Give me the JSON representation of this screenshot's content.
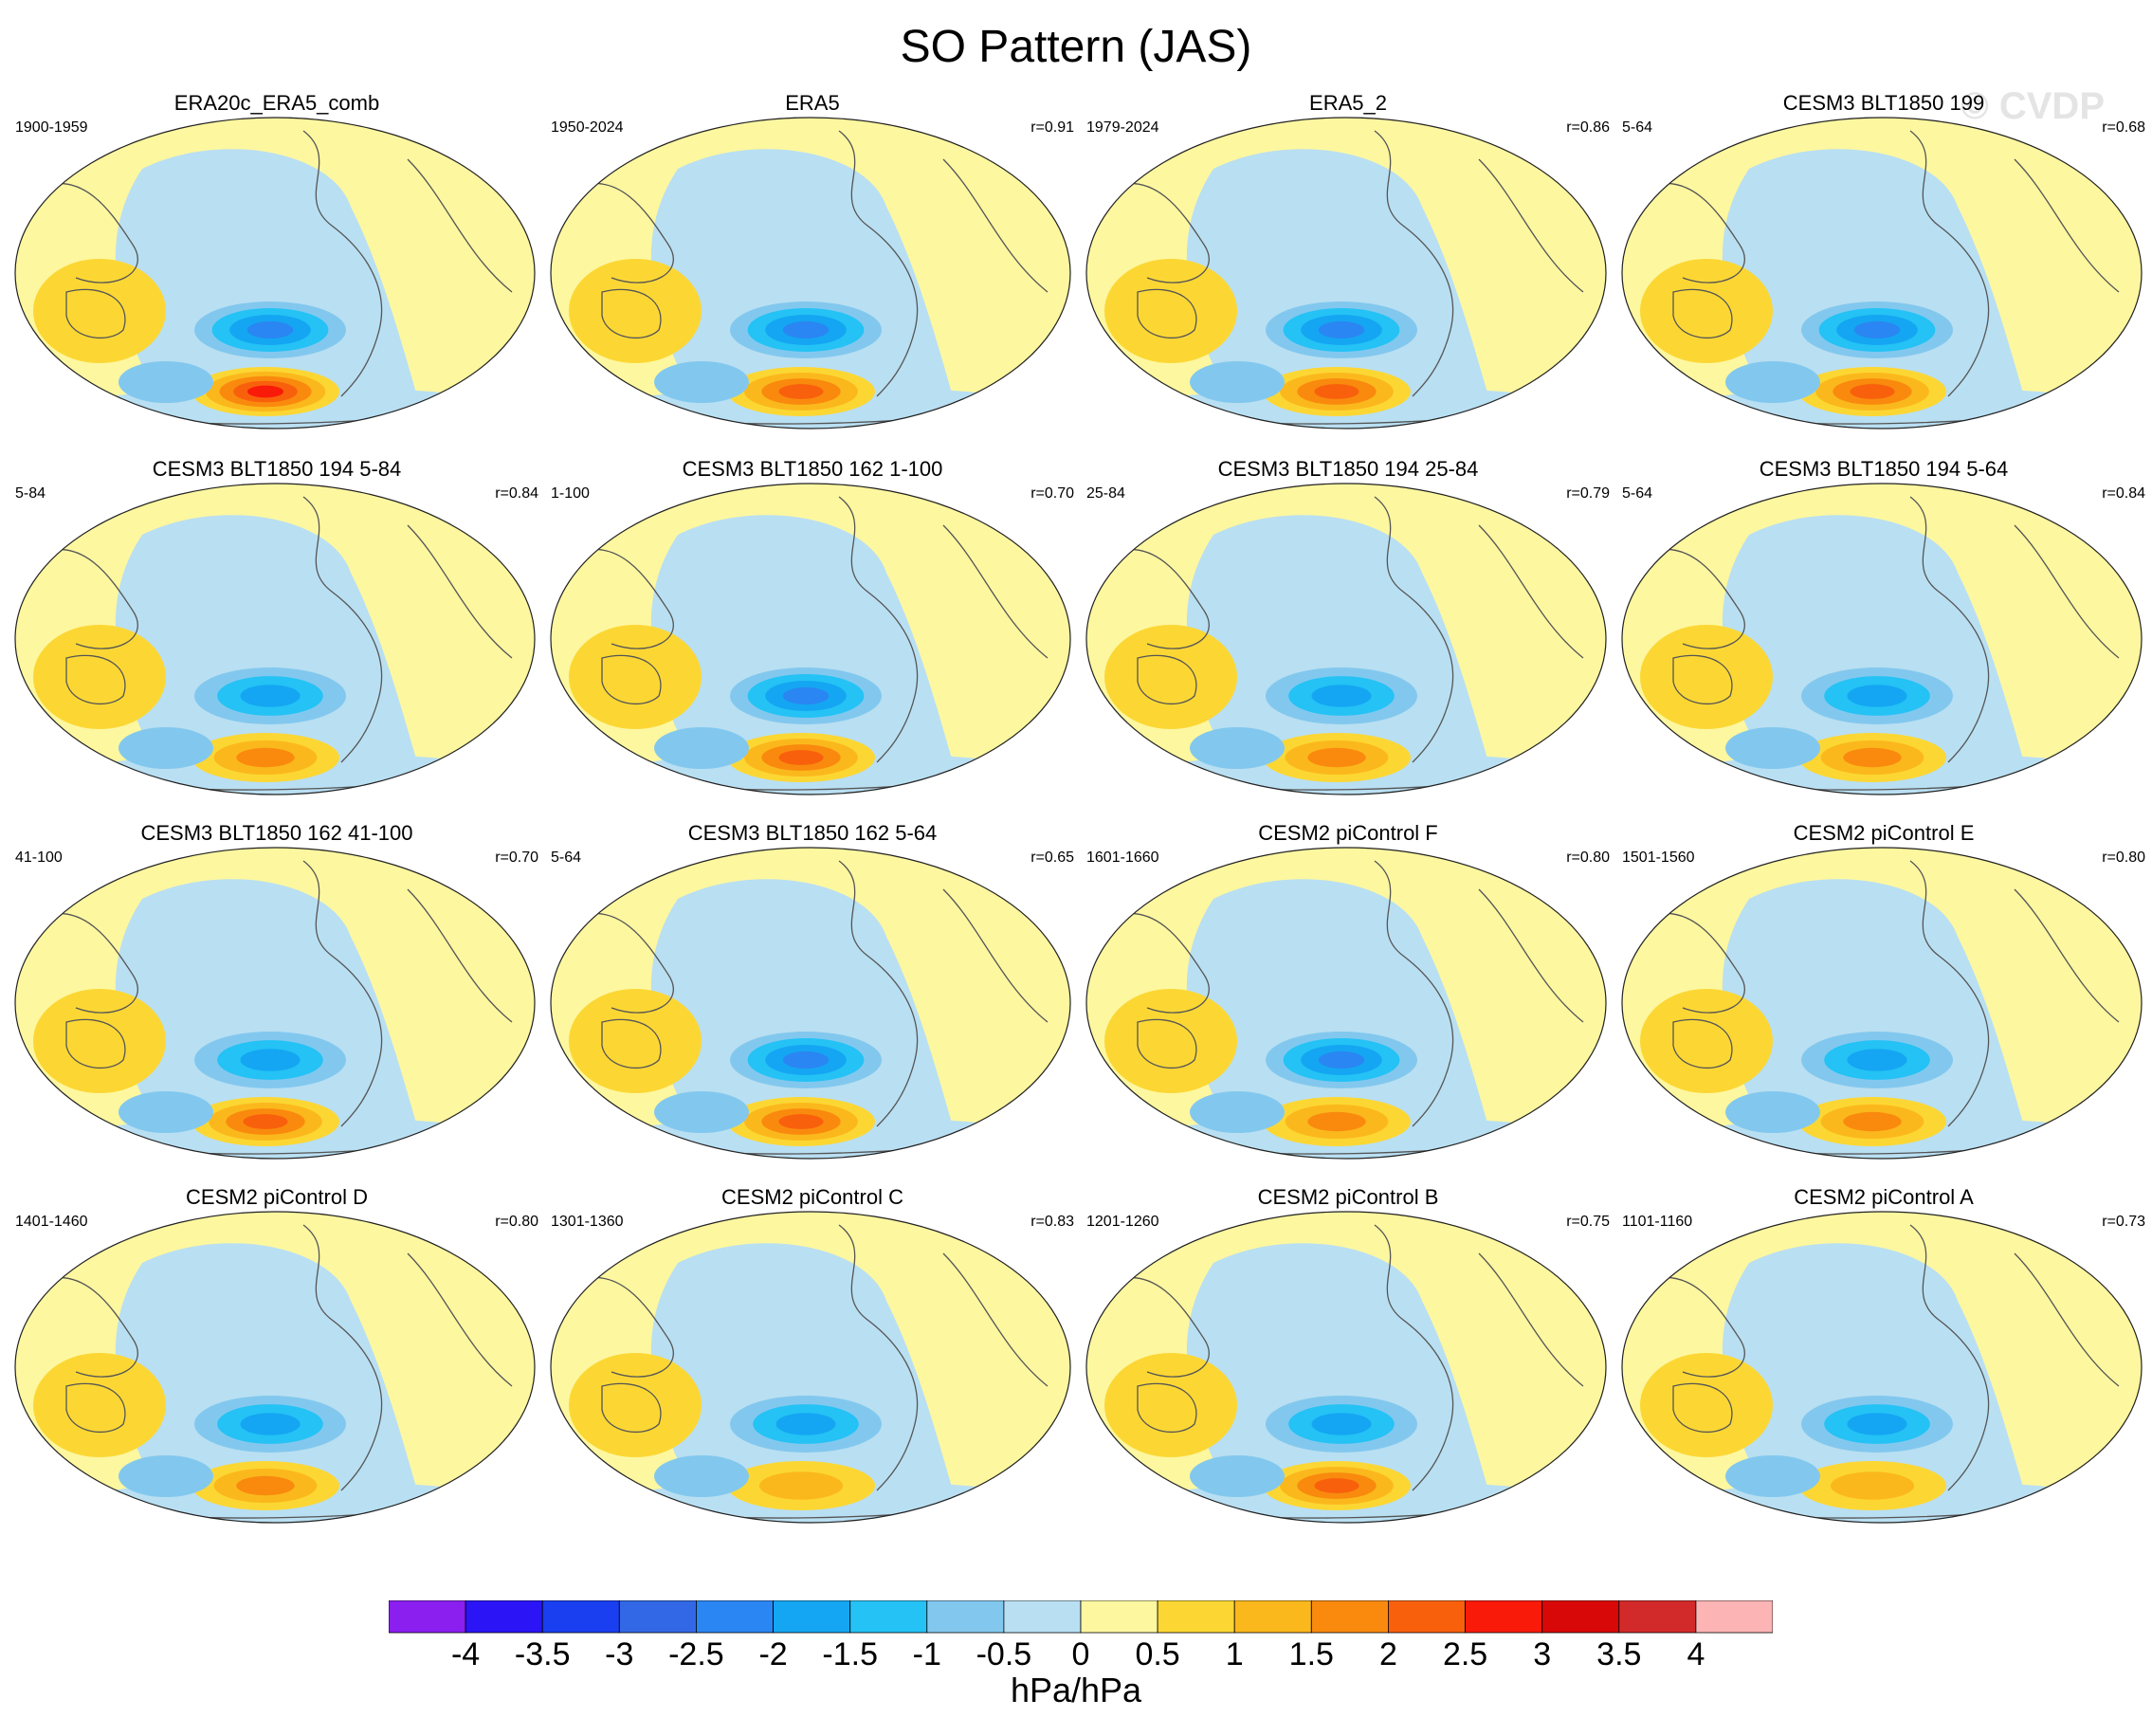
{
  "chart_data": {
    "type": "heatmap",
    "title": "SO Pattern (JAS)",
    "watermark": "© CVDP",
    "colorbar": {
      "units": "hPa/hPa",
      "levels": [
        "-4",
        "-3.5",
        "-3",
        "-2.5",
        "-2",
        "-1.5",
        "-1",
        "-0.5",
        "0",
        "0.5",
        "1",
        "1.5",
        "2",
        "2.5",
        "3",
        "3.5",
        "4"
      ],
      "colors": [
        "#8a1ff0",
        "#2b14f5",
        "#1a3ff0",
        "#3268e6",
        "#2a86f2",
        "#14a6f2",
        "#24c2f5",
        "#82c8ee",
        "#b9dff2",
        "#fdf7a0",
        "#fcd734",
        "#fbb81c",
        "#f98a0e",
        "#f9600c",
        "#f91a0a",
        "#d90808",
        "#d22a2a",
        "#fcb4b4"
      ]
    },
    "panels": [
      {
        "name": "ERA20c_ERA5_comb",
        "years": "1900-1959",
        "r": "",
        "neg": -2.0,
        "pos": 2.8
      },
      {
        "name": "ERA5",
        "years": "1950-2024",
        "r": "r=0.91",
        "neg": -2.0,
        "pos": 2.0
      },
      {
        "name": "ERA5_2",
        "years": "1979-2024",
        "r": "r=0.86",
        "neg": -2.0,
        "pos": 2.3
      },
      {
        "name": "CESM3 BLT1850 199",
        "years": "5-64",
        "r": "r=0.68",
        "neg": -2.0,
        "pos": 2.0
      },
      {
        "name": "CESM3 BLT1850 194 5-84",
        "years": "5-84",
        "r": "r=0.84",
        "neg": -1.8,
        "pos": 1.6
      },
      {
        "name": "CESM3 BLT1850 162 1-100",
        "years": "1-100",
        "r": "r=0.70",
        "neg": -2.2,
        "pos": 2.0
      },
      {
        "name": "CESM3 BLT1850 194 25-84",
        "years": "25-84",
        "r": "r=0.79",
        "neg": -1.8,
        "pos": 1.5
      },
      {
        "name": "CESM3 BLT1850 194 5-64",
        "years": "5-64",
        "r": "r=0.84",
        "neg": -1.7,
        "pos": 1.5
      },
      {
        "name": "CESM3 BLT1850 162 41-100",
        "years": "41-100",
        "r": "r=0.70",
        "neg": -1.9,
        "pos": 2.0
      },
      {
        "name": "CESM3 BLT1850 162 5-64",
        "years": "5-64",
        "r": "r=0.65",
        "neg": -2.1,
        "pos": 2.0
      },
      {
        "name": "CESM2 piControl F",
        "years": "1601-1660",
        "r": "r=0.80",
        "neg": -2.0,
        "pos": 1.7
      },
      {
        "name": "CESM2 piControl E",
        "years": "1501-1560",
        "r": "r=0.80",
        "neg": -1.7,
        "pos": 1.5
      },
      {
        "name": "CESM2 piControl D",
        "years": "1401-1460",
        "r": "r=0.80",
        "neg": -1.6,
        "pos": 1.5
      },
      {
        "name": "CESM2 piControl C",
        "years": "1301-1360",
        "r": "r=0.83",
        "neg": -1.6,
        "pos": 1.4
      },
      {
        "name": "CESM2 piControl B",
        "years": "1201-1260",
        "r": "r=0.75",
        "neg": -1.7,
        "pos": 2.0
      },
      {
        "name": "CESM2 piControl A",
        "years": "1101-1160",
        "r": "r=0.73",
        "neg": -1.5,
        "pos": 1.4
      }
    ]
  }
}
